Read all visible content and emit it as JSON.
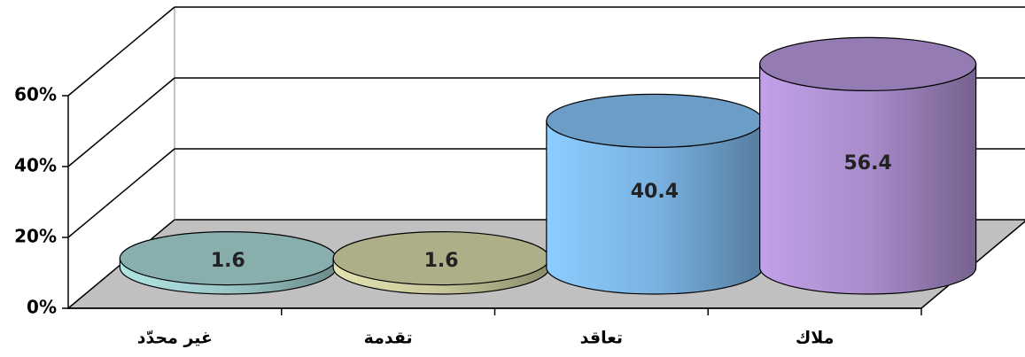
{
  "chart_data": {
    "type": "cylinder",
    "categories": [
      "غير محدّد",
      "تقدمة",
      "تعاقد",
      "ملاك"
    ],
    "values": [
      1.6,
      1.6,
      40.4,
      56.4
    ],
    "colors": [
      "#9ac6c6",
      "#c6c69a",
      "#7ab2e2",
      "#a88ccb"
    ],
    "ylim": [
      0,
      60
    ],
    "yticks": [
      {
        "value": 0,
        "label": "0%"
      },
      {
        "value": 20,
        "label": "20%"
      },
      {
        "value": 40,
        "label": "40%"
      },
      {
        "value": 60,
        "label": "60%"
      }
    ],
    "grid": true
  }
}
